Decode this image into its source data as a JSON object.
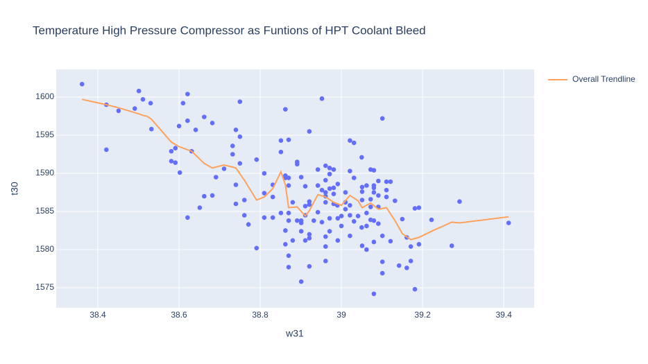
{
  "chart_data": {
    "type": "scatter",
    "title": "Temperature High Pressure Compressor as Funtions of HPT Coolant Bleed",
    "x_label": "w31",
    "y_label": "t30",
    "xlim": [
      38.2974,
      39.475
    ],
    "ylim": [
      1572.36,
      1603.64
    ],
    "xticks": [
      38.4,
      38.6,
      38.8,
      39,
      39.2,
      39.4
    ],
    "yticks": [
      1575,
      1580,
      1585,
      1590,
      1595,
      1600
    ],
    "grid": true,
    "legend": "right",
    "series": [
      {
        "color": "#636efa",
        "mode": "markers",
        "x": [
          38.361,
          38.421,
          38.451,
          38.421,
          38.501,
          38.511,
          38.491,
          38.53,
          38.532,
          38.621,
          38.61,
          38.621,
          38.6,
          38.641,
          38.662,
          38.682,
          38.581,
          38.591,
          38.581,
          38.591,
          38.602,
          38.631,
          38.621,
          38.651,
          38.662,
          38.682,
          38.691,
          38.711,
          38.75,
          38.74,
          38.75,
          38.732,
          38.732,
          38.75,
          38.74,
          38.74,
          38.761,
          38.761,
          38.771,
          38.791,
          38.791,
          38.81,
          38.81,
          38.81,
          38.831,
          38.831,
          38.831,
          38.862,
          38.851,
          38.851,
          38.87,
          38.862,
          38.862,
          38.87,
          38.87,
          38.851,
          38.87,
          38.87,
          38.88,
          38.891,
          38.862,
          38.862,
          38.87,
          38.87,
          38.88,
          38.891,
          38.891,
          38.901,
          38.901,
          38.901,
          38.911,
          38.911,
          38.911,
          38.901,
          38.921,
          38.921,
          38.921,
          38.921,
          38.911,
          38.921,
          38.932,
          38.921,
          38.901,
          38.942,
          38.942,
          38.952,
          38.961,
          38.942,
          38.952,
          38.961,
          38.961,
          38.961,
          38.952,
          38.961,
          38.971,
          38.971,
          38.971,
          38.971,
          38.981,
          38.981,
          38.981,
          38.961,
          38.961,
          38.961,
          38.971,
          38.981,
          38.99,
          38.991,
          38.991,
          38.991,
          39.0,
          39.0,
          39.01,
          39.01,
          39.01,
          39.021,
          39.031,
          39.021,
          39.031,
          39.021,
          39.021,
          39.021,
          39.031,
          39.041,
          39.05,
          39.051,
          39.051,
          39.051,
          39.062,
          39.062,
          39.05,
          39.062,
          39.051,
          39.062,
          39.072,
          39.072,
          39.072,
          39.072,
          39.08,
          39.08,
          39.08,
          39.08,
          39.08,
          39.08,
          39.08,
          39.091,
          39.091,
          39.091,
          39.091,
          39.101,
          39.101,
          39.101,
          39.101,
          39.111,
          39.111,
          39.111,
          39.121,
          39.121,
          39.132,
          39.142,
          39.15,
          39.161,
          39.161,
          39.171,
          39.171,
          39.181,
          39.181,
          39.191,
          39.191,
          39.222,
          39.272,
          39.291,
          39.412
        ],
        "values": [
          1601.7,
          1599.0,
          1598.2,
          1593.1,
          1600.8,
          1599.7,
          1598.5,
          1599.2,
          1595.8,
          1600.4,
          1599.2,
          1596.9,
          1596.2,
          1595.7,
          1597.4,
          1596.6,
          1592.9,
          1593.3,
          1591.6,
          1591.4,
          1590.1,
          1592.9,
          1584.2,
          1585.5,
          1587.0,
          1587.1,
          1589.5,
          1590.6,
          1599.4,
          1595.7,
          1594.8,
          1593.6,
          1592.5,
          1591.3,
          1588.5,
          1586.0,
          1586.5,
          1584.5,
          1583.3,
          1591.8,
          1580.2,
          1590.0,
          1587.4,
          1584.2,
          1588.5,
          1586.9,
          1584.2,
          1598.4,
          1594.3,
          1592.8,
          1594.4,
          1589.7,
          1589.4,
          1589.4,
          1588.4,
          1584.8,
          1584.8,
          1583.8,
          1586.2,
          1583.8,
          1582.5,
          1580.7,
          1579.2,
          1577.7,
          1581.2,
          1591.5,
          1591.2,
          1589.5,
          1583.8,
          1583.5,
          1585.7,
          1588.3,
          1584.5,
          1582.4,
          1595.5,
          1585.9,
          1586.3,
          1582.0,
          1581.2,
          1581.5,
          1583.8,
          1577.8,
          1575.8,
          1588.4,
          1590.5,
          1599.8,
          1591.0,
          1584.9,
          1583.6,
          1586.2,
          1587.0,
          1589.1,
          1587.8,
          1587.5,
          1590.7,
          1589.9,
          1588.0,
          1584.1,
          1590.5,
          1586.0,
          1587.3,
          1581.7,
          1580.4,
          1578.5,
          1582.4,
          1588.1,
          1585.8,
          1588.6,
          1584.1,
          1581.2,
          1583.1,
          1584.4,
          1587.5,
          1586.2,
          1585.3,
          1594.3,
          1594.0,
          1590.3,
          1589.4,
          1585.8,
          1584.5,
          1581.8,
          1583.7,
          1584.4,
          1592.1,
          1588.2,
          1587.6,
          1586.5,
          1588.4,
          1584.8,
          1582.9,
          1583.1,
          1580.5,
          1580.0,
          1590.5,
          1586.6,
          1585.6,
          1583.9,
          1590.4,
          1588.4,
          1588.1,
          1587.5,
          1583.8,
          1581.0,
          1574.2,
          1589.0,
          1587.1,
          1585.6,
          1583.4,
          1597.2,
          1581.8,
          1578.4,
          1576.9,
          1588.9,
          1587.8,
          1586.9,
          1588.9,
          1581.1,
          1586.4,
          1577.9,
          1584.0,
          1581.6,
          1577.6,
          1580.4,
          1578.5,
          1585.4,
          1574.8,
          1585.5,
          1580.7,
          1583.9,
          1580.5,
          1586.3,
          1583.5
        ]
      },
      {
        "name": "Overall Trendline",
        "color": "#FFA15A",
        "mode": "lines",
        "x": [
          38.361,
          38.421,
          38.451,
          38.501,
          38.511,
          38.521,
          38.532,
          38.581,
          38.6,
          38.631,
          38.662,
          38.682,
          38.711,
          38.74,
          38.761,
          38.791,
          38.81,
          38.831,
          38.851,
          38.862,
          38.87,
          38.891,
          38.911,
          38.921,
          38.942,
          38.961,
          38.981,
          39.0,
          39.021,
          39.041,
          39.051,
          39.072,
          39.091,
          39.111,
          39.132,
          39.15,
          39.171,
          39.191,
          39.222,
          39.272,
          39.291,
          39.412
        ],
        "values": [
          1599.7,
          1599.0,
          1598.6,
          1597.8,
          1597.6,
          1597.5,
          1597.1,
          1594.1,
          1593.5,
          1592.9,
          1591.3,
          1590.7,
          1591.1,
          1590.7,
          1589.1,
          1586.5,
          1586.9,
          1588.0,
          1590.2,
          1588.5,
          1585.5,
          1585.6,
          1584.4,
          1585.1,
          1587.2,
          1586.9,
          1586.2,
          1585.8,
          1587.1,
          1586.4,
          1585.5,
          1586.1,
          1585.3,
          1585.5,
          1583.8,
          1582.1,
          1581.3,
          1581.6,
          1582.4,
          1583.6,
          1583.5,
          1584.3
        ]
      }
    ]
  }
}
